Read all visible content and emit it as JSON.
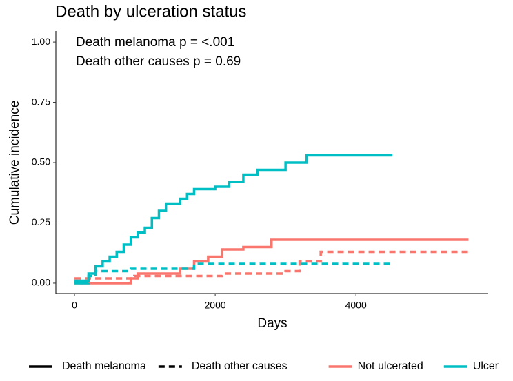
{
  "chart_data": {
    "type": "step",
    "title": "Death by ulceration status",
    "x_label": "Days",
    "y_label": "Cumulative incidence",
    "annotations": [
      "Death melanoma p = <.001",
      "Death other causes p = 0.69"
    ],
    "xlim": [
      -265,
      5880
    ],
    "xticks": [
      0,
      2000,
      4000
    ],
    "ylim": [
      -0.043,
      1.046
    ],
    "yticks": [
      {
        "value": 0,
        "label": "0.00"
      },
      {
        "value": 0.25,
        "label": "0.25"
      },
      {
        "value": 0.5,
        "label": "0.50"
      },
      {
        "value": 0.75,
        "label": "0.75"
      },
      {
        "value": 1,
        "label": "1.00"
      }
    ],
    "grid": false,
    "legend_position": "bottom",
    "linetypes": [
      {
        "name": "Death melanoma",
        "dash": false
      },
      {
        "name": "Death other causes",
        "dash": true
      }
    ],
    "groups": [
      {
        "name": "Not ulcerated",
        "color": "#f8766d",
        "series": [
          {
            "x": [
              0,
              800,
              900,
              1500,
              1700,
              1900,
              2100,
              2400,
              2800,
              5600
            ],
            "values": [
              0,
              0.02,
              0.04,
              0.06,
              0.09,
              0.11,
              0.14,
              0.15,
              0.18,
              0.18
            ]
          },
          {
            "x": [
              0,
              850,
              1700,
              2100,
              3000,
              3200,
              3500,
              5600
            ],
            "values": [
              0.02,
              0.03,
              0.03,
              0.04,
              0.05,
              0.09,
              0.13,
              0.13
            ]
          }
        ]
      },
      {
        "name": "Ulcer",
        "color": "#00bfc4",
        "series": [
          {
            "x": [
              0,
              100,
              200,
              300,
              400,
              500,
              600,
              700,
              800,
              900,
              1000,
              1100,
              1200,
              1300,
              1500,
              1600,
              1700,
              2000,
              2200,
              2400,
              2600,
              3000,
              3300,
              4520
            ],
            "values": [
              0,
              0.01,
              0.04,
              0.07,
              0.09,
              0.11,
              0.13,
              0.16,
              0.19,
              0.21,
              0.23,
              0.27,
              0.3,
              0.33,
              0.35,
              0.37,
              0.39,
              0.4,
              0.42,
              0.45,
              0.47,
              0.5,
              0.53,
              0.53
            ]
          },
          {
            "x": [
              0,
              100,
              200,
              300,
              800,
              1700,
              4520
            ],
            "values": [
              0.01,
              0,
              0.03,
              0.05,
              0.06,
              0.08,
              0.08
            ]
          }
        ]
      }
    ]
  }
}
